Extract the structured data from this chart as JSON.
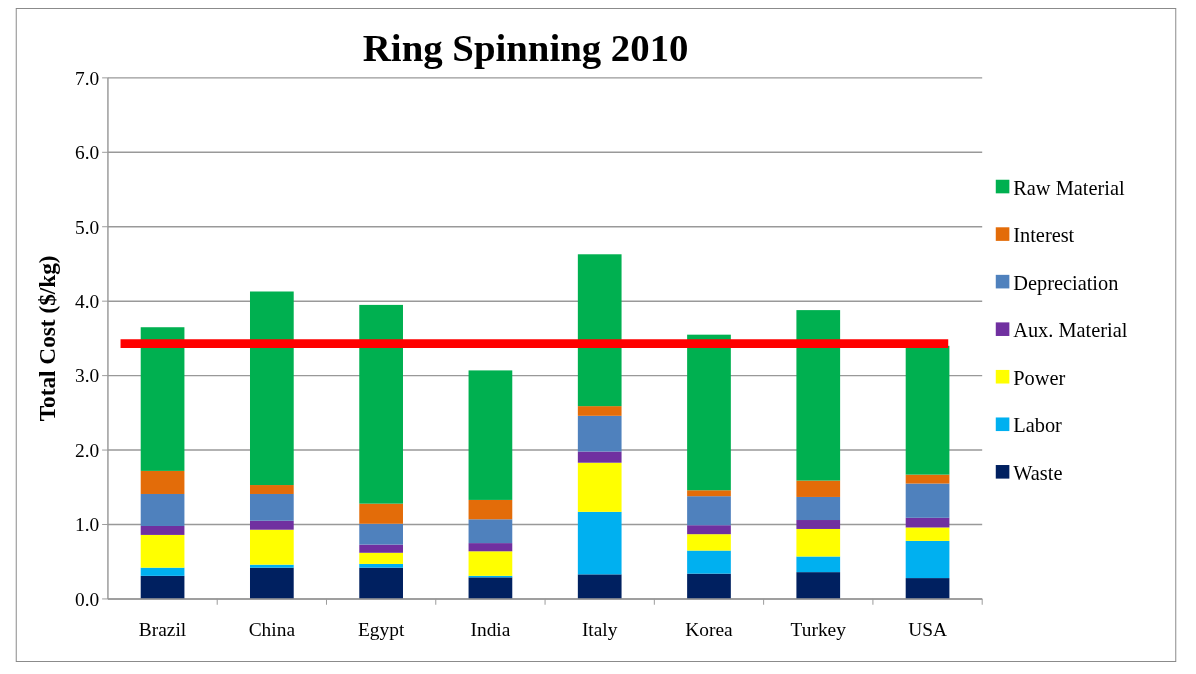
{
  "chart_data": {
    "type": "bar",
    "title": "Ring Spinning 2010",
    "ylabel": "Total Cost ($/kg)",
    "stacked": true,
    "categories": [
      "Brazil",
      "China",
      "Egypt",
      "India",
      "Italy",
      "Korea",
      "Turkey",
      "USA"
    ],
    "series": [
      {
        "name": "Waste",
        "color": "#002060",
        "values": [
          0.31,
          0.42,
          0.42,
          0.29,
          0.33,
          0.34,
          0.36,
          0.28
        ]
      },
      {
        "name": "Labor",
        "color": "#00b0f0",
        "values": [
          0.11,
          0.04,
          0.05,
          0.02,
          0.84,
          0.31,
          0.21,
          0.5
        ]
      },
      {
        "name": "Power",
        "color": "#ffff00",
        "values": [
          0.44,
          0.47,
          0.15,
          0.33,
          0.66,
          0.22,
          0.37,
          0.18
        ]
      },
      {
        "name": "Aux. Material",
        "color": "#7030a0",
        "values": [
          0.12,
          0.12,
          0.11,
          0.11,
          0.15,
          0.12,
          0.12,
          0.13
        ]
      },
      {
        "name": "Depreciation",
        "color": "#4f81bd",
        "values": [
          0.43,
          0.36,
          0.28,
          0.32,
          0.48,
          0.39,
          0.31,
          0.46
        ]
      },
      {
        "name": "Interest",
        "color": "#e36c09",
        "values": [
          0.31,
          0.12,
          0.27,
          0.26,
          0.13,
          0.08,
          0.22,
          0.12
        ]
      },
      {
        "name": "Raw Material",
        "color": "#00b050",
        "values": [
          1.93,
          2.6,
          2.67,
          1.74,
          2.04,
          2.09,
          2.29,
          1.73
        ]
      }
    ],
    "ylim": [
      0,
      7
    ],
    "yticks": [
      {
        "value": 0,
        "label": "0.0"
      },
      {
        "value": 1,
        "label": "1.0"
      },
      {
        "value": 2,
        "label": "2.0"
      },
      {
        "value": 3,
        "label": "3.0"
      },
      {
        "value": 4,
        "label": "4.0"
      },
      {
        "value": 5,
        "label": "5.0"
      },
      {
        "value": 6,
        "label": "6.0"
      },
      {
        "value": 7,
        "label": "7.0"
      }
    ],
    "grid": "y",
    "legend": "right",
    "ref_lines": [
      {
        "axis": "y",
        "value": 3.43,
        "color": "#ff0000"
      }
    ]
  }
}
